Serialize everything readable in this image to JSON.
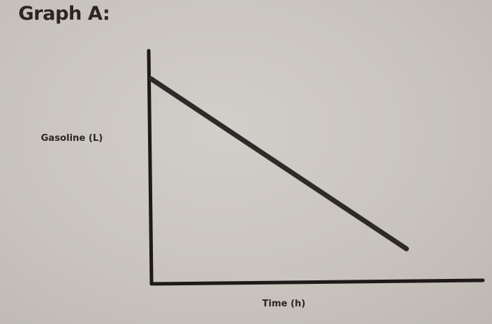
{
  "chart_data": {
    "type": "line",
    "title": "Graph A:",
    "xlabel": "Time (h)",
    "ylabel": "Gasoline (L)",
    "xlim": [
      0,
      1
    ],
    "ylim": [
      0,
      1
    ],
    "grid": false,
    "ticks": false,
    "series": [
      {
        "x": [
          0,
          0.77
        ],
        "y": [
          0.88,
          0.15
        ],
        "color": "#2e2a28"
      }
    ],
    "axis_color": "#1e1a19"
  }
}
